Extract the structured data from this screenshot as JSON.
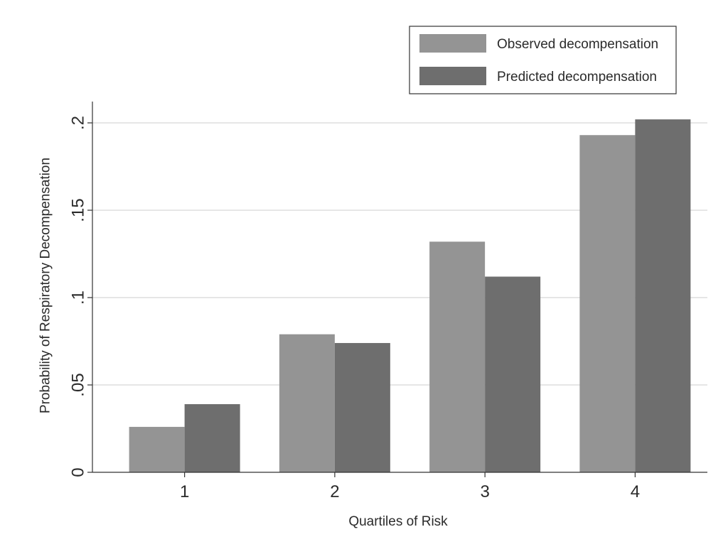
{
  "chart_data": {
    "type": "bar",
    "title": "",
    "xlabel": "Quartiles of Risk",
    "ylabel": "Probability of Respiratory Decompensation",
    "categories": [
      "1",
      "2",
      "3",
      "4"
    ],
    "series": [
      {
        "name": "Observed decompensation",
        "values": [
          0.026,
          0.079,
          0.132,
          0.193
        ],
        "color": "#949494"
      },
      {
        "name": "Predicted decompensation",
        "values": [
          0.039,
          0.074,
          0.112,
          0.202
        ],
        "color": "#6e6e6e"
      }
    ],
    "ylim": [
      0,
      0.2
    ],
    "yticks": [
      0,
      0.05,
      0.1,
      0.15,
      0.2
    ],
    "ytick_labels": [
      "0",
      ".05",
      ".1",
      ".15",
      ".2"
    ],
    "grid": true,
    "legend_position": "top-right"
  }
}
